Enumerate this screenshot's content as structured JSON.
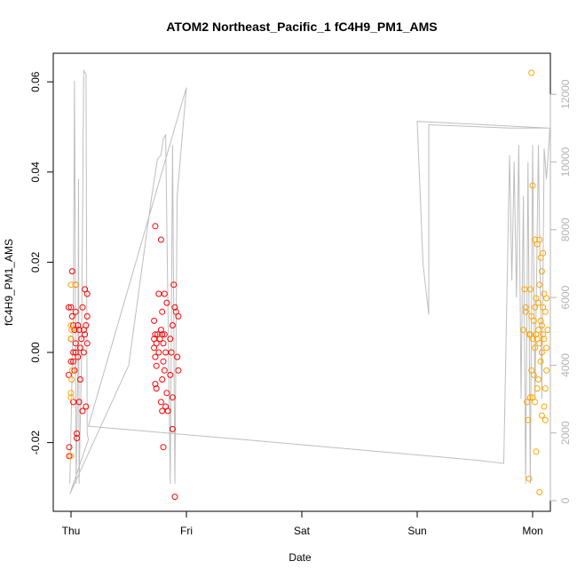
{
  "chart_data": {
    "type": "scatter",
    "title": "ATOM2 Northeast_Pacific_1 fC4H9_PM1_AMS",
    "xlabel": "Date",
    "ylabel": "fC4H9_PM1_AMS",
    "x_ticks": [
      "Thu",
      "Fri",
      "Sat",
      "Sun",
      "Mon"
    ],
    "ylim": [
      -0.035,
      0.065
    ],
    "y_ticks": [
      "-0.02",
      "0.00",
      "0.02",
      "0.04",
      "0.06"
    ],
    "y2lim": [
      0,
      12800
    ],
    "y2_ticks": [
      "0",
      "2000",
      "4000",
      "6000",
      "8000",
      "10000",
      "12000"
    ],
    "colors": {
      "red": "#ff0000",
      "orange": "#ffa500",
      "line": "#bebebe"
    },
    "series": [
      {
        "color_key": "red",
        "points": [
          [
            -0.02,
            0.01
          ],
          [
            -0.02,
            -0.005
          ],
          [
            -0.015,
            -0.021
          ],
          [
            -0.015,
            -0.023
          ],
          [
            0.0,
            0.01
          ],
          [
            0.0,
            0.003
          ],
          [
            0.0,
            -0.002
          ],
          [
            0.01,
            0.018
          ],
          [
            0.01,
            0.008
          ],
          [
            0.02,
            0.006
          ],
          [
            0.02,
            0.0
          ],
          [
            0.02,
            -0.002
          ],
          [
            0.02,
            -0.011
          ],
          [
            0.03,
            0.005
          ],
          [
            0.03,
            -0.004
          ],
          [
            0.04,
            0.015
          ],
          [
            0.04,
            0.009
          ],
          [
            0.04,
            0.002
          ],
          [
            0.04,
            0.0
          ],
          [
            0.05,
            -0.018
          ],
          [
            0.05,
            -0.019
          ],
          [
            0.06,
            0.006
          ],
          [
            0.06,
            -0.001
          ],
          [
            0.07,
            0.005
          ],
          [
            0.07,
            -0.011
          ],
          [
            0.08,
            0.001
          ],
          [
            0.08,
            -0.006
          ],
          [
            0.09,
            0.003
          ],
          [
            0.1,
            0.01
          ],
          [
            0.1,
            -0.013
          ],
          [
            0.11,
            0.005
          ],
          [
            0.11,
            0.0
          ],
          [
            0.12,
            0.014
          ],
          [
            0.12,
            0.004
          ],
          [
            0.13,
            0.006
          ],
          [
            0.13,
            -0.012
          ],
          [
            0.14,
            0.013
          ],
          [
            0.14,
            0.008
          ],
          [
            0.14,
            0.002
          ],
          [
            0.72,
            0.007
          ],
          [
            0.72,
            0.003
          ],
          [
            0.72,
            0.001
          ],
          [
            0.73,
            0.028
          ],
          [
            0.73,
            0.004
          ],
          [
            0.73,
            -0.001
          ],
          [
            0.73,
            -0.007
          ],
          [
            0.74,
            0.002
          ],
          [
            0.74,
            -0.003
          ],
          [
            0.74,
            -0.008
          ],
          [
            0.75,
            0.004
          ],
          [
            0.76,
            0.013
          ],
          [
            0.76,
            0.0
          ],
          [
            0.77,
            0.003
          ],
          [
            0.78,
            0.025
          ],
          [
            0.78,
            0.005
          ],
          [
            0.78,
            -0.011
          ],
          [
            0.79,
            0.009
          ],
          [
            0.79,
            0.004
          ],
          [
            0.79,
            -0.006
          ],
          [
            0.79,
            -0.013
          ],
          [
            0.8,
            0.002
          ],
          [
            0.8,
            -0.002
          ],
          [
            0.8,
            -0.021
          ],
          [
            0.81,
            0.013
          ],
          [
            0.81,
            0.004
          ],
          [
            0.81,
            -0.004
          ],
          [
            0.82,
            0.0
          ],
          [
            0.82,
            -0.012
          ],
          [
            0.83,
            0.011
          ],
          [
            0.83,
            -0.009
          ],
          [
            0.84,
            -0.013
          ],
          [
            0.86,
            0.003
          ],
          [
            0.86,
            -0.005
          ],
          [
            0.87,
            0.0
          ],
          [
            0.88,
            0.006
          ],
          [
            0.88,
            -0.01
          ],
          [
            0.88,
            -0.017
          ],
          [
            0.89,
            0.015
          ],
          [
            0.9,
            0.01
          ],
          [
            0.9,
            -0.032
          ],
          [
            0.91,
            0.009
          ],
          [
            0.92,
            -0.001
          ],
          [
            0.93,
            0.008
          ],
          [
            0.93,
            -0.004
          ]
        ]
      },
      {
        "color_key": "orange",
        "points": [
          [
            0.0,
            0.015
          ],
          [
            0.0,
            0.006
          ],
          [
            0.0,
            0.003
          ],
          [
            0.0,
            -0.009
          ],
          [
            0.0,
            -0.01
          ],
          [
            0.0,
            -0.023
          ],
          [
            0.005,
            0.005
          ],
          [
            0.01,
            -0.004
          ],
          [
            0.005,
            -0.006
          ],
          [
            0.04,
            0.015
          ],
          [
            3.92,
            0.005
          ],
          [
            3.93,
            0.014
          ],
          [
            3.94,
            0.01
          ],
          [
            3.94,
            0.009
          ],
          [
            3.95,
            -0.011
          ],
          [
            3.96,
            -0.015
          ],
          [
            3.97,
            -0.028
          ],
          [
            3.97,
            0.004
          ],
          [
            3.98,
            0.014
          ],
          [
            3.98,
            0.004
          ],
          [
            3.98,
            -0.01
          ],
          [
            3.99,
            0.008
          ],
          [
            3.99,
            -0.004
          ],
          [
            4.0,
            0.037
          ],
          [
            4.0,
            0.003
          ],
          [
            4.0,
            -0.01
          ],
          [
            4.01,
            0.007
          ],
          [
            4.01,
            -0.005
          ],
          [
            4.02,
            0.025
          ],
          [
            4.02,
            0.01
          ],
          [
            4.02,
            0.001
          ],
          [
            4.02,
            -0.011
          ],
          [
            4.03,
            0.012
          ],
          [
            4.03,
            0.004
          ],
          [
            4.03,
            -0.022
          ],
          [
            4.04,
            0.024
          ],
          [
            4.04,
            0.003
          ],
          [
            4.04,
            -0.008
          ],
          [
            4.05,
            0.011
          ],
          [
            4.05,
            0.005
          ],
          [
            4.05,
            -0.006
          ],
          [
            4.06,
            0.025
          ],
          [
            4.06,
            0.015
          ],
          [
            4.06,
            0.002
          ],
          [
            4.06,
            -0.031
          ],
          [
            4.07,
            0.021
          ],
          [
            4.07,
            0.007
          ],
          [
            4.07,
            -0.002
          ],
          [
            4.08,
            0.018
          ],
          [
            4.08,
            0.006
          ],
          [
            4.08,
            0.0
          ],
          [
            4.08,
            -0.014
          ],
          [
            4.09,
            0.022
          ],
          [
            4.09,
            0.01
          ],
          [
            4.09,
            0.004
          ],
          [
            4.1,
            0.013
          ],
          [
            4.1,
            0.003
          ],
          [
            4.1,
            -0.012
          ],
          [
            4.11,
            0.009
          ],
          [
            4.11,
            -0.008
          ],
          [
            4.11,
            -0.015
          ],
          [
            4.12,
            0.012
          ],
          [
            4.12,
            0.001
          ],
          [
            4.12,
            -0.004
          ],
          [
            4.13,
            0.005
          ],
          [
            3.99,
            0.062
          ]
        ]
      }
    ],
    "line_series": [
      [
        -0.01,
        500
      ],
      [
        0.02,
        5500
      ],
      [
        0.03,
        12400
      ],
      [
        0.045,
        500
      ],
      [
        0.06,
        4000
      ],
      [
        0.065,
        9500
      ],
      [
        0.07,
        500
      ],
      [
        0.09,
        4000
      ],
      [
        0.11,
        12700
      ],
      [
        0.13,
        12600
      ],
      [
        0.14,
        2000
      ],
      [
        0.15,
        1800
      ],
      [
        -0.01,
        200
      ],
      [
        0.5,
        4000
      ],
      [
        0.7,
        9000
      ],
      [
        0.75,
        10100
      ],
      [
        0.78,
        10200
      ],
      [
        0.8,
        10700
      ],
      [
        0.82,
        10800
      ],
      [
        0.86,
        500
      ],
      [
        0.88,
        10500
      ],
      [
        0.9,
        500
      ],
      [
        0.92,
        9000
      ],
      [
        1.0,
        12200
      ],
      [
        0.15,
        2200
      ],
      [
        1.5,
        1800
      ],
      [
        2.5,
        1500
      ],
      [
        3.5,
        1200
      ],
      [
        3.75,
        1100
      ],
      [
        3.8,
        10200
      ],
      [
        3.82,
        6500
      ],
      [
        3.84,
        10000
      ],
      [
        3.86,
        6000
      ],
      [
        3.88,
        10500
      ],
      [
        3.9,
        3000
      ],
      [
        3.92,
        9000
      ],
      [
        3.94,
        500
      ],
      [
        3.96,
        10000
      ],
      [
        3.98,
        500
      ],
      [
        4.0,
        10500
      ],
      [
        4.02,
        3000
      ],
      [
        4.05,
        10500
      ],
      [
        4.08,
        3000
      ],
      [
        4.1,
        10400
      ],
      [
        4.12,
        9500
      ],
      [
        4.15,
        11000
      ],
      [
        3.0,
        11200
      ],
      [
        3.05,
        7000
      ],
      [
        3.1,
        5500
      ],
      [
        3.1,
        11100
      ],
      [
        3.8,
        11000
      ],
      [
        4.15,
        11000
      ]
    ]
  }
}
